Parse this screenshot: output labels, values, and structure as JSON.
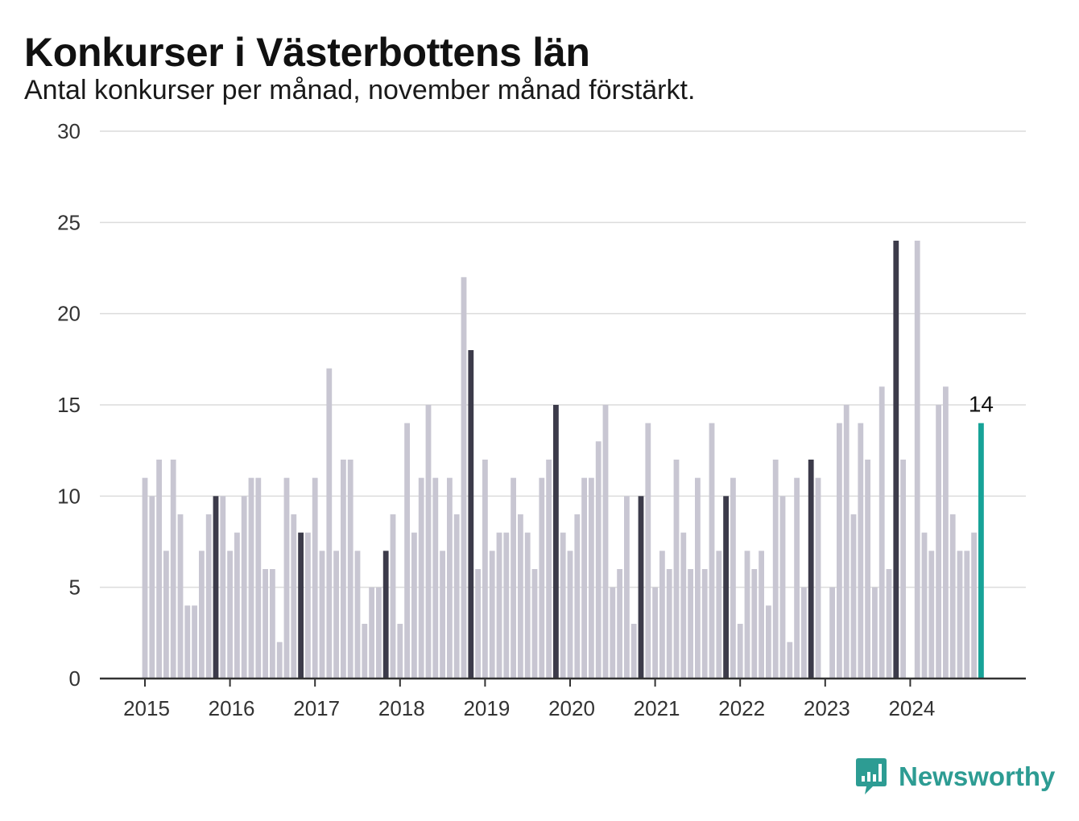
{
  "header": {
    "title": "Konkurser i Västerbottens län",
    "subtitle": "Antal konkurser per månad, november månad förstärkt."
  },
  "brand": {
    "name": "Newsworthy",
    "icon": "newsworthy-logo-icon",
    "color": "#2d9c93"
  },
  "colors": {
    "bar_default": "#c8c6d2",
    "bar_november": "#3c3b4a",
    "bar_latest": "#17a398",
    "grid": "#dcdcdc",
    "axis": "#333333"
  },
  "chart_data": {
    "type": "bar",
    "title": "Konkurser i Västerbottens län",
    "subtitle": "Antal konkurser per månad, november månad förstärkt.",
    "xlabel": "",
    "ylabel": "",
    "ylim": [
      0,
      30
    ],
    "yticks": [
      0,
      5,
      10,
      15,
      20,
      25,
      30
    ],
    "grid": true,
    "year_labels": [
      "2015",
      "2016",
      "2017",
      "2018",
      "2019",
      "2020",
      "2021",
      "2022",
      "2023",
      "2024"
    ],
    "start_year": 2015,
    "start_month": 1,
    "highlight_month": 11,
    "latest_label": "14",
    "values": [
      11,
      10,
      12,
      7,
      12,
      9,
      4,
      4,
      7,
      9,
      10,
      10,
      7,
      8,
      10,
      11,
      11,
      6,
      6,
      2,
      11,
      9,
      8,
      8,
      11,
      7,
      17,
      7,
      12,
      12,
      7,
      3,
      5,
      5,
      7,
      9,
      3,
      14,
      8,
      11,
      15,
      11,
      7,
      11,
      9,
      22,
      18,
      6,
      12,
      7,
      8,
      8,
      11,
      9,
      8,
      6,
      11,
      12,
      15,
      8,
      7,
      9,
      11,
      11,
      13,
      15,
      5,
      6,
      10,
      3,
      10,
      14,
      5,
      7,
      6,
      12,
      8,
      6,
      11,
      6,
      14,
      7,
      10,
      11,
      3,
      7,
      6,
      7,
      4,
      12,
      10,
      2,
      11,
      5,
      12,
      11,
      0,
      5,
      14,
      15,
      9,
      14,
      12,
      5,
      16,
      6,
      24,
      12,
      0,
      24,
      8,
      7,
      15,
      16,
      9,
      7,
      7,
      8,
      14
    ]
  }
}
